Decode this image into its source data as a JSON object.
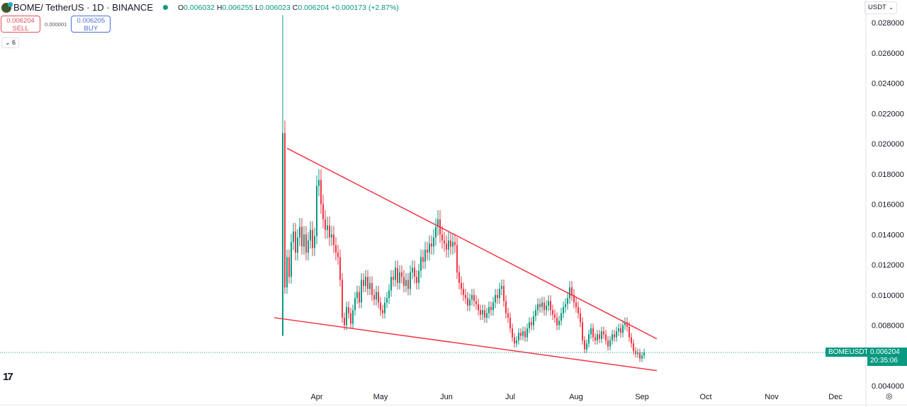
{
  "header": {
    "symbol": "BOME",
    "pair": " / TetherUS · 1D · BINANCE",
    "o_label": "O",
    "o": "0.006032",
    "h_label": "H",
    "h": "0.006255",
    "l_label": "L",
    "l": "0.006023",
    "c_label": "C",
    "c": "0.006204",
    "change": "+0.000173 (+2.87%)"
  },
  "trade": {
    "sell_price": "0.006204",
    "sell_label": "SELL",
    "spread": "0.000001",
    "buy_price": "0.006205",
    "buy_label": "BUY"
  },
  "indicators_toggle": "6",
  "currency": "USDT",
  "price_tag": {
    "symbol": "BOMEUSDT",
    "price": "0.006204",
    "countdown": "20:35:06"
  },
  "colors": {
    "up": "#089981",
    "down": "#f23645",
    "trendline": "#f23645"
  },
  "chart_data": {
    "type": "candlestick",
    "start_date": "2024-03-16",
    "ylim": [
      0.0036,
      0.0292
    ],
    "y_ticks": [
      "0.004000",
      "0.008000",
      "0.010000",
      "0.012000",
      "0.014000",
      "0.016000",
      "0.018000",
      "0.020000",
      "0.022000",
      "0.024000",
      "0.026000",
      "0.028000"
    ],
    "x_ticks": [
      {
        "label": "Apr",
        "date": "2024-04-01"
      },
      {
        "label": "May",
        "date": "2024-05-01"
      },
      {
        "label": "Jun",
        "date": "2024-06-01"
      },
      {
        "label": "Jul",
        "date": "2024-07-01"
      },
      {
        "label": "Aug",
        "date": "2024-08-01"
      },
      {
        "label": "Sep",
        "date": "2024-09-01"
      },
      {
        "label": "Oct",
        "date": "2024-10-01"
      },
      {
        "label": "Nov",
        "date": "2024-11-01"
      },
      {
        "label": "Dec",
        "date": "2024-12-01"
      }
    ],
    "first_candle": {
      "open": 0.0073,
      "high": 0.0285,
      "low": 0.0073,
      "close": 0.0207
    },
    "closes": [
      0.0207,
      0.0105,
      0.0125,
      0.0112,
      0.0135,
      0.0142,
      0.0128,
      0.0138,
      0.0145,
      0.0132,
      0.014,
      0.0128,
      0.0136,
      0.0143,
      0.0131,
      0.0139,
      0.0172,
      0.0176,
      0.016,
      0.015,
      0.0143,
      0.0146,
      0.0138,
      0.014,
      0.0133,
      0.0128,
      0.0125,
      0.011,
      0.0085,
      0.008,
      0.0092,
      0.0088,
      0.0081,
      0.009,
      0.0098,
      0.0102,
      0.0095,
      0.011,
      0.0106,
      0.0112,
      0.0104,
      0.0108,
      0.01,
      0.0097,
      0.0102,
      0.0095,
      0.009,
      0.0088,
      0.0095,
      0.0098,
      0.0103,
      0.0112,
      0.011,
      0.0118,
      0.0108,
      0.0115,
      0.0112,
      0.0106,
      0.011,
      0.0104,
      0.0115,
      0.0118,
      0.0112,
      0.0108,
      0.0116,
      0.0125,
      0.0122,
      0.013,
      0.0128,
      0.0134,
      0.0132,
      0.0138,
      0.0145,
      0.015,
      0.014,
      0.0136,
      0.0134,
      0.013,
      0.0136,
      0.0132,
      0.0135,
      0.0133,
      0.0115,
      0.0108,
      0.0104,
      0.01,
      0.0098,
      0.0093,
      0.0097,
      0.01,
      0.0096,
      0.0094,
      0.009,
      0.0087,
      0.009,
      0.0085,
      0.0088,
      0.0092,
      0.009,
      0.0095,
      0.01,
      0.0098,
      0.0104,
      0.0106,
      0.0096,
      0.0088,
      0.0085,
      0.0078,
      0.0072,
      0.0068,
      0.007,
      0.0075,
      0.0073,
      0.0076,
      0.0072,
      0.0078,
      0.0082,
      0.008,
      0.0086,
      0.009,
      0.0094,
      0.0092,
      0.0095,
      0.009,
      0.0093,
      0.0096,
      0.009,
      0.0087,
      0.0085,
      0.008,
      0.0083,
      0.0088,
      0.0092,
      0.0094,
      0.0098,
      0.0105,
      0.01,
      0.0095,
      0.0092,
      0.0088,
      0.0082,
      0.007,
      0.0064,
      0.0068,
      0.0074,
      0.0078,
      0.0072,
      0.007,
      0.0074,
      0.0071,
      0.0076,
      0.0074,
      0.007,
      0.0066,
      0.007,
      0.0074,
      0.0072,
      0.0076,
      0.0078,
      0.0075,
      0.008,
      0.0082,
      0.0079,
      0.0072,
      0.0068,
      0.0063,
      0.0061,
      0.0062,
      0.0058,
      0.006,
      0.0062
    ],
    "trendlines": [
      {
        "from": {
          "date": "2024-03-18",
          "price": 0.0197
        },
        "to": {
          "date": "2024-09-08",
          "price": 0.0071
        }
      },
      {
        "from": {
          "date": "2024-03-12",
          "price": 0.0085
        },
        "to": {
          "date": "2024-09-08",
          "price": 0.005
        }
      }
    ],
    "last_price": 0.006204
  }
}
